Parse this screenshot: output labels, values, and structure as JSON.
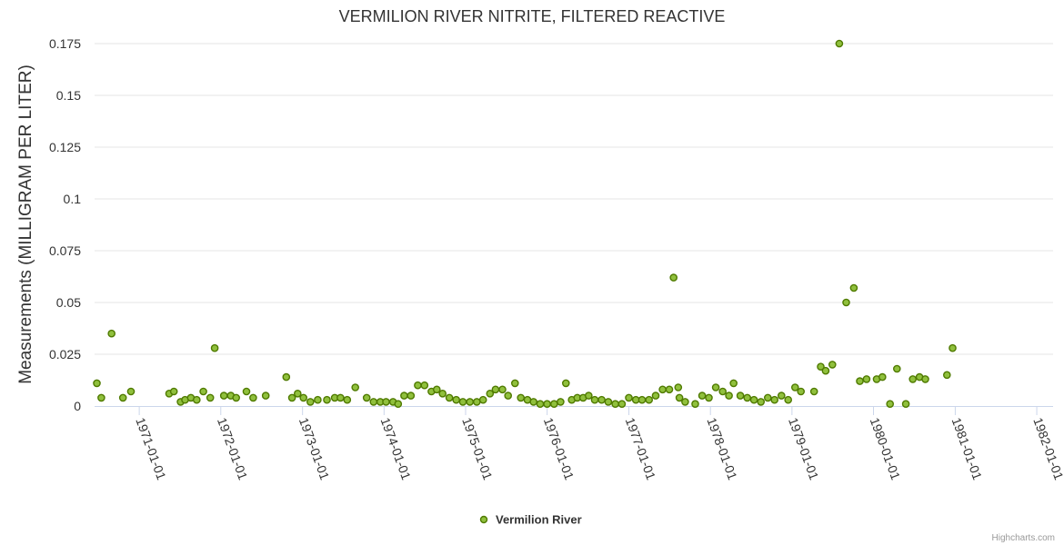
{
  "chart_data": {
    "type": "scatter",
    "title": "VERMILION RIVER NITRITE, FILTERED REACTIVE",
    "ylabel": "Measurements (MILLIGRAM PER LITER)",
    "xlabel": "",
    "ylim": [
      0,
      0.175
    ],
    "yticks": [
      "0",
      "0.025",
      "0.05",
      "0.075",
      "0.1",
      "0.125",
      "0.15",
      "0.175"
    ],
    "xticks": [
      "1971-01-01",
      "1972-01-01",
      "1973-01-01",
      "1974-01-01",
      "1975-01-01",
      "1976-01-01",
      "1977-01-01",
      "1978-01-01",
      "1979-01-01",
      "1980-01-01",
      "1981-01-01",
      "1982-01-01"
    ],
    "xlim": [
      "1970-06-15",
      "1982-03-15"
    ],
    "grid": true,
    "legend_position": "bottom-center",
    "series": [
      {
        "name": "Vermilion River",
        "color": "#7cb5ec",
        "marker_fill": "#90c03d",
        "marker_stroke": "#4f7a00",
        "points": [
          [
            "1970-06-25",
            0.011
          ],
          [
            "1970-07-15",
            0.004
          ],
          [
            "1970-08-30",
            0.035
          ],
          [
            "1970-10-20",
            0.004
          ],
          [
            "1970-11-25",
            0.007
          ],
          [
            "1971-05-15",
            0.006
          ],
          [
            "1971-06-05",
            0.007
          ],
          [
            "1971-07-05",
            0.002
          ],
          [
            "1971-07-25",
            0.003
          ],
          [
            "1971-08-20",
            0.004
          ],
          [
            "1971-09-15",
            0.003
          ],
          [
            "1971-10-15",
            0.007
          ],
          [
            "1971-11-15",
            0.004
          ],
          [
            "1971-12-05",
            0.028
          ],
          [
            "1972-01-15",
            0.005
          ],
          [
            "1972-02-15",
            0.005
          ],
          [
            "1972-03-10",
            0.004
          ],
          [
            "1972-04-25",
            0.007
          ],
          [
            "1972-05-25",
            0.004
          ],
          [
            "1972-07-20",
            0.005
          ],
          [
            "1972-10-20",
            0.014
          ],
          [
            "1972-11-15",
            0.004
          ],
          [
            "1972-12-10",
            0.006
          ],
          [
            "1973-01-05",
            0.004
          ],
          [
            "1973-02-05",
            0.002
          ],
          [
            "1973-03-10",
            0.003
          ],
          [
            "1973-04-20",
            0.003
          ],
          [
            "1973-05-25",
            0.004
          ],
          [
            "1973-06-20",
            0.004
          ],
          [
            "1973-07-20",
            0.003
          ],
          [
            "1973-08-25",
            0.009
          ],
          [
            "1973-10-15",
            0.004
          ],
          [
            "1973-11-15",
            0.002
          ],
          [
            "1973-12-15",
            0.002
          ],
          [
            "1974-01-10",
            0.002
          ],
          [
            "1974-02-10",
            0.002
          ],
          [
            "1974-03-05",
            0.001
          ],
          [
            "1974-04-01",
            0.005
          ],
          [
            "1974-05-01",
            0.005
          ],
          [
            "1974-06-01",
            0.01
          ],
          [
            "1974-07-01",
            0.01
          ],
          [
            "1974-08-01",
            0.007
          ],
          [
            "1974-08-25",
            0.008
          ],
          [
            "1974-09-20",
            0.006
          ],
          [
            "1974-10-20",
            0.004
          ],
          [
            "1974-11-20",
            0.003
          ],
          [
            "1974-12-20",
            0.002
          ],
          [
            "1975-01-20",
            0.002
          ],
          [
            "1975-02-20",
            0.002
          ],
          [
            "1975-03-20",
            0.003
          ],
          [
            "1975-04-20",
            0.006
          ],
          [
            "1975-05-15",
            0.008
          ],
          [
            "1975-06-15",
            0.008
          ],
          [
            "1975-07-10",
            0.005
          ],
          [
            "1975-08-10",
            0.011
          ],
          [
            "1975-09-05",
            0.004
          ],
          [
            "1975-10-05",
            0.003
          ],
          [
            "1975-11-01",
            0.002
          ],
          [
            "1975-12-01",
            0.001
          ],
          [
            "1976-01-01",
            0.001
          ],
          [
            "1976-02-01",
            0.001
          ],
          [
            "1976-03-01",
            0.002
          ],
          [
            "1976-03-25",
            0.011
          ],
          [
            "1976-04-20",
            0.003
          ],
          [
            "1976-05-15",
            0.004
          ],
          [
            "1976-06-10",
            0.004
          ],
          [
            "1976-07-05",
            0.005
          ],
          [
            "1976-08-01",
            0.003
          ],
          [
            "1976-09-01",
            0.003
          ],
          [
            "1976-10-01",
            0.002
          ],
          [
            "1976-11-01",
            0.001
          ],
          [
            "1976-12-01",
            0.001
          ],
          [
            "1977-01-01",
            0.004
          ],
          [
            "1977-02-01",
            0.003
          ],
          [
            "1977-03-01",
            0.003
          ],
          [
            "1977-04-01",
            0.003
          ],
          [
            "1977-05-01",
            0.005
          ],
          [
            "1977-06-01",
            0.008
          ],
          [
            "1977-07-01",
            0.008
          ],
          [
            "1977-07-20",
            0.062
          ],
          [
            "1977-08-10",
            0.009
          ],
          [
            "1977-08-15",
            0.004
          ],
          [
            "1977-09-10",
            0.002
          ],
          [
            "1977-10-25",
            0.001
          ],
          [
            "1977-11-25",
            0.005
          ],
          [
            "1977-12-25",
            0.004
          ],
          [
            "1978-01-25",
            0.009
          ],
          [
            "1978-02-25",
            0.007
          ],
          [
            "1978-03-25",
            0.005
          ],
          [
            "1978-04-15",
            0.011
          ],
          [
            "1978-05-15",
            0.005
          ],
          [
            "1978-06-15",
            0.004
          ],
          [
            "1978-07-15",
            0.003
          ],
          [
            "1978-08-15",
            0.002
          ],
          [
            "1978-09-15",
            0.004
          ],
          [
            "1978-10-15",
            0.003
          ],
          [
            "1978-11-15",
            0.005
          ],
          [
            "1978-12-15",
            0.003
          ],
          [
            "1979-01-15",
            0.009
          ],
          [
            "1979-02-10",
            0.007
          ],
          [
            "1979-04-10",
            0.007
          ],
          [
            "1979-05-10",
            0.019
          ],
          [
            "1979-06-01",
            0.017
          ],
          [
            "1979-07-01",
            0.02
          ],
          [
            "1979-08-01",
            0.175
          ],
          [
            "1979-09-01",
            0.05
          ],
          [
            "1979-10-05",
            0.057
          ],
          [
            "1979-11-01",
            0.012
          ],
          [
            "1979-12-01",
            0.013
          ],
          [
            "1980-01-15",
            0.013
          ],
          [
            "1980-02-10",
            0.014
          ],
          [
            "1980-03-15",
            0.001
          ],
          [
            "1980-04-15",
            0.018
          ],
          [
            "1980-05-25",
            0.001
          ],
          [
            "1980-06-25",
            0.013
          ],
          [
            "1980-07-25",
            0.014
          ],
          [
            "1980-08-20",
            0.013
          ],
          [
            "1980-11-25",
            0.015
          ],
          [
            "1980-12-20",
            0.028
          ]
        ]
      }
    ]
  },
  "credits": "Highcharts.com"
}
